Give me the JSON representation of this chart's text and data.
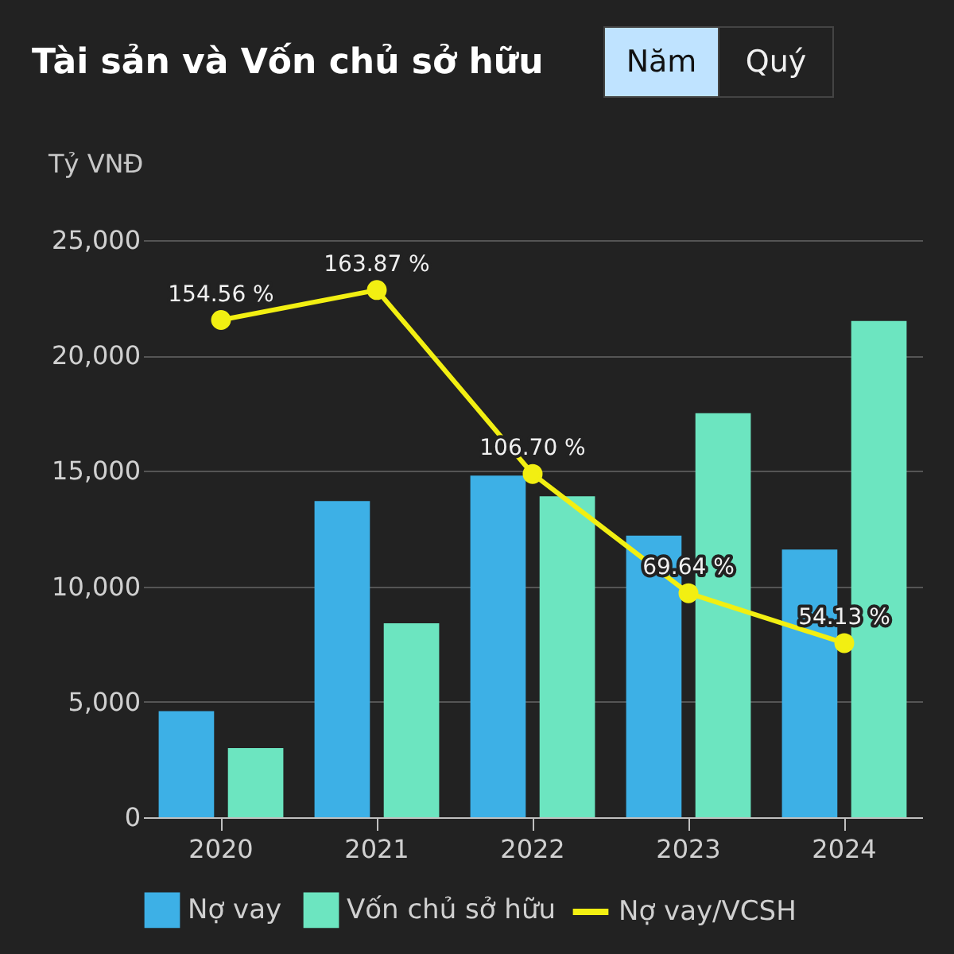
{
  "chart_data": {
    "type": "bar",
    "title": "Tài sản và Vốn chủ sở hữu",
    "ylabel": "Tỷ VNĐ",
    "categories": [
      "2020",
      "2021",
      "2022",
      "2023",
      "2024"
    ],
    "series": [
      {
        "name": "Nợ vay",
        "color": "#3db0e6",
        "values": [
          4600,
          13700,
          14800,
          12200,
          11600
        ]
      },
      {
        "name": "Vốn chủ sở hữu",
        "color": "#6ce5c0",
        "values": [
          3000,
          8400,
          13900,
          17500,
          21500
        ]
      },
      {
        "name": "Nợ vay/VCSH",
        "color": "#f2ef12",
        "type": "line",
        "axis": "y2",
        "marker": "circle",
        "values": [
          154.56,
          163.87,
          106.7,
          69.64,
          54.13
        ],
        "value_labels": [
          "154.56 %",
          "163.87 %",
          "106.70 %",
          "69.64 %",
          "54.13 %"
        ]
      }
    ],
    "ylim": [
      0,
      25000
    ],
    "yticks": [
      0,
      {
        "value": 5000,
        "label": "5,000"
      },
      {
        "value": 10000,
        "label": "10,000"
      },
      {
        "value": 15000,
        "label": "15,000"
      },
      {
        "value": 20000,
        "label": "20,000"
      },
      {
        "value": 25000,
        "label": "25,000"
      }
    ],
    "y2lim": [
      0,
      179.4
    ],
    "grid": "y",
    "legend": "bottom",
    "tick_labels": "xy",
    "annotations": [
      "Năm",
      "Quý"
    ]
  }
}
